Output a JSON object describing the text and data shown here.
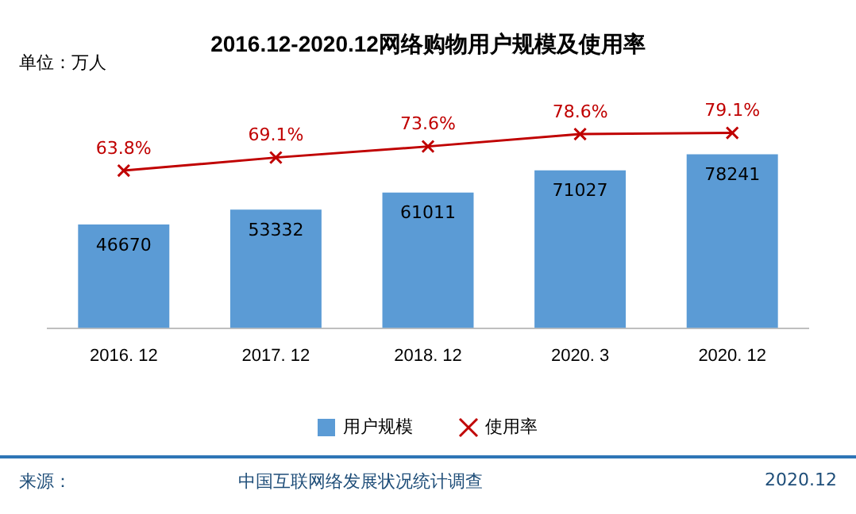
{
  "chart_data": {
    "type": "bar",
    "title": "2016.12-2020.12网络购物用户规模及使用率",
    "categories": [
      "2016. 12",
      "2017. 12",
      "2018. 12",
      "2020. 3",
      "2020. 12"
    ],
    "series": [
      {
        "name": "用户规模",
        "type": "bar",
        "color": "#5b9bd5",
        "values": [
          46670,
          53332,
          61011,
          71027,
          78241
        ]
      },
      {
        "name": "使用率",
        "type": "line",
        "axis": "y2",
        "color": "#c00000",
        "values": [
          63.8,
          69.1,
          73.6,
          78.6,
          79.1
        ],
        "value_labels": [
          "63.8%",
          "69.1%",
          "73.6%",
          "78.6%",
          "79.1%"
        ]
      }
    ],
    "data_labels": true,
    "tick_labels": "x",
    "grid": false,
    "legend": "bottom",
    "marker": "cross",
    "line_style": "solid",
    "annotations": [
      "单位：万人",
      "来源：",
      "中国互联网络发展状况统计调查",
      "2020.12"
    ]
  }
}
